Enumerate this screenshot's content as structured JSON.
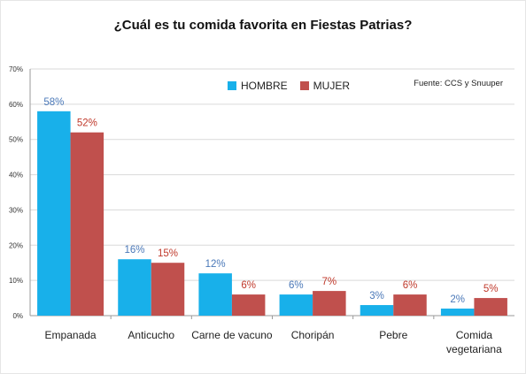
{
  "chart_data": {
    "type": "bar",
    "title": "¿Cuál es tu comida favorita en Fiestas Patrias?",
    "source": "Fuente: CCS y Snuuper",
    "categories": [
      [
        "Empanada"
      ],
      [
        "Anticucho"
      ],
      [
        "Carne de vacuno"
      ],
      [
        "Choripán"
      ],
      [
        "Pebre"
      ],
      [
        "Comida",
        "vegetariana"
      ]
    ],
    "series": [
      {
        "name": "HOMBRE",
        "color": "#18b0ea",
        "label_color": "#4a78b8",
        "values": [
          58,
          16,
          12,
          6,
          3,
          2
        ],
        "labels": [
          "58%",
          "16%",
          "12%",
          "6%",
          "3%",
          "2%"
        ]
      },
      {
        "name": "MUJER",
        "color": "#c0504d",
        "label_color": "#c0392b",
        "values": [
          52,
          15,
          6,
          7,
          6,
          5
        ],
        "labels": [
          "52%",
          "15%",
          "6%",
          "7%",
          "6%",
          "5%"
        ]
      }
    ],
    "ylim": [
      0,
      70
    ],
    "yticks": [
      0,
      10,
      20,
      30,
      40,
      50,
      60,
      70
    ],
    "ytick_labels": [
      "0%",
      "10%",
      "20%",
      "30%",
      "40%",
      "50%",
      "60%",
      "70%"
    ],
    "grid": true,
    "legend_position": "top-center"
  }
}
